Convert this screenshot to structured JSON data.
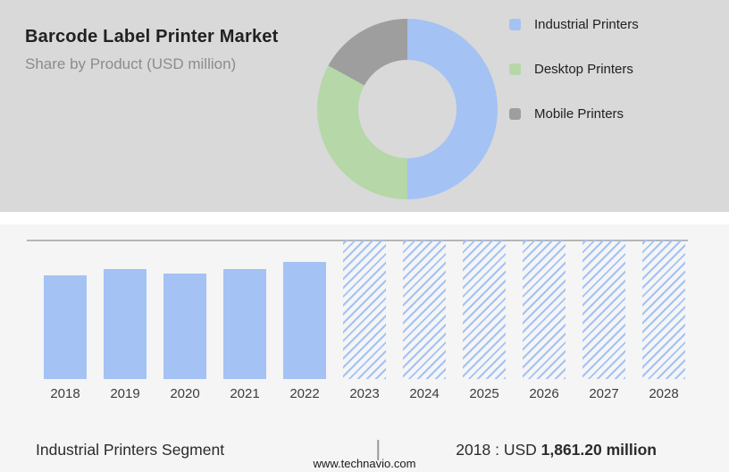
{
  "header": {
    "title": "Barcode Label Printer Market",
    "subtitle": "Share by Product (USD million)"
  },
  "colors": {
    "top_panel_bg": "#d9d9d9",
    "bottom_panel_bg": "#f5f5f5",
    "industrial_blue": "#a4c2f4",
    "desktop_green": "#b6d7a8",
    "mobile_gray": "#9e9e9e"
  },
  "chart_data": [
    {
      "type": "pie",
      "donut": true,
      "title": "Share by Product (USD million)",
      "legend_position": "right",
      "segments": [
        {
          "label": "Industrial Printers",
          "pct": 50,
          "color": "#a4c2f4"
        },
        {
          "label": "Desktop Printers",
          "pct": 33,
          "color": "#b6d7a8"
        },
        {
          "label": "Mobile Printers",
          "pct": 17,
          "color": "#9e9e9e"
        }
      ]
    },
    {
      "type": "bar",
      "title": "Industrial Printers Segment",
      "unit": "USD million",
      "categories": [
        "2018",
        "2019",
        "2020",
        "2021",
        "2022",
        "2023",
        "2024",
        "2025",
        "2026",
        "2027",
        "2028"
      ],
      "values": [
        1861.2,
        1985,
        1900,
        1975,
        2105,
        null,
        null,
        null,
        null,
        null,
        null
      ],
      "forecast_start": "2023",
      "forecast_bar_style": "hatched-full-height",
      "ylim": [
        0,
        2510
      ],
      "bar_color": "#a4c2f4",
      "grid": false,
      "annotation": "2018 : USD 1,861.20 million"
    }
  ],
  "footer": {
    "segment_label": "Industrial Printers Segment",
    "separator": "|",
    "value_prefix": "2018 : USD ",
    "value_bold": "1,861.20 million",
    "website": "www.technavio.com"
  }
}
